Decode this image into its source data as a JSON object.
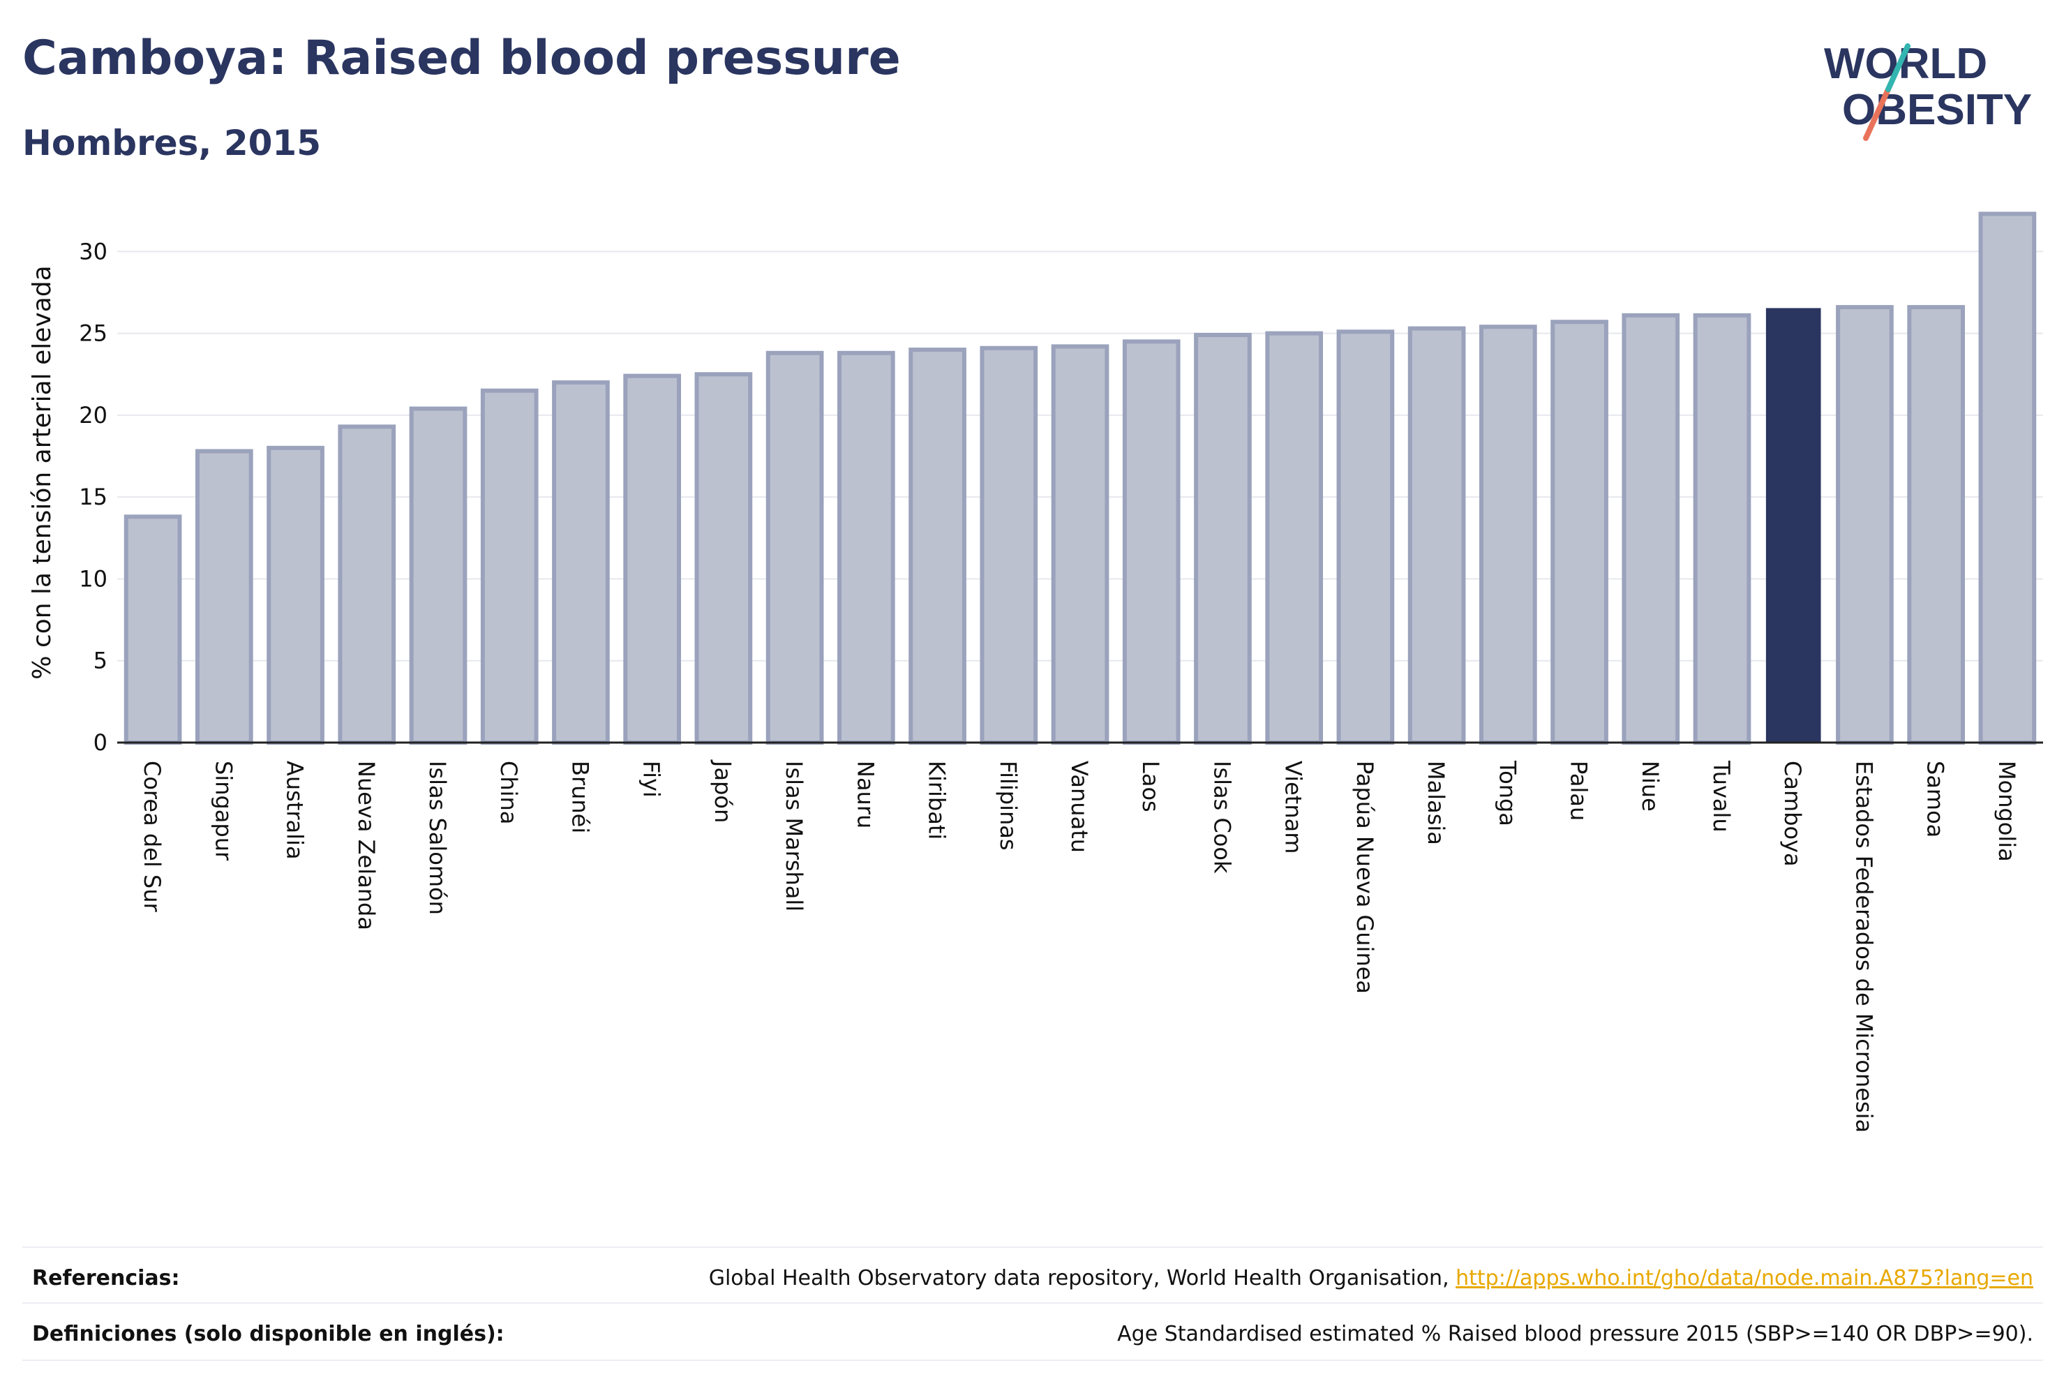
{
  "header": {
    "title": "Camboya: Raised blood pressure",
    "subtitle": "Hombres, 2015"
  },
  "logo": {
    "line1": "WORLD",
    "line2": "OBESITY"
  },
  "colors": {
    "highlight": "#2a3560",
    "bar": "#bcc1d0",
    "bar_border": "#9aa2bc",
    "text": "#2a3560"
  },
  "chart_data": {
    "type": "bar",
    "ylabel": "% con la tensión arterial elevada",
    "ylim": [
      0,
      33
    ],
    "yticks": [
      0,
      5,
      10,
      15,
      20,
      25,
      30
    ],
    "grid": true,
    "highlight": "Camboya",
    "categories": [
      "Corea del Sur",
      "Singapur",
      "Australia",
      "Nueva Zelanda",
      "Islas Salomón",
      "China",
      "Brunéi",
      "Fiyi",
      "Japón",
      "Islas Marshall",
      "Nauru",
      "Kiribati",
      "Filipinas",
      "Vanuatu",
      "Laos",
      "Islas Cook",
      "Vietnam",
      "Papúa Nueva Guinea",
      "Malasia",
      "Tonga",
      "Palau",
      "Niue",
      "Tuvalu",
      "Camboya",
      "Estados Federados de Micronesia",
      "Samoa",
      "Mongolia"
    ],
    "values": [
      13.8,
      17.8,
      18.0,
      19.3,
      20.4,
      21.5,
      22.0,
      22.4,
      22.5,
      23.8,
      23.8,
      24.0,
      24.1,
      24.2,
      24.5,
      24.9,
      25.0,
      25.1,
      25.3,
      25.4,
      25.7,
      26.1,
      26.1,
      26.5,
      26.6,
      26.6,
      32.3
    ]
  },
  "footer": {
    "references_label": "Referencias:",
    "references_text": "Global Health Observatory data repository, World Health Organisation, ",
    "references_link": "http://apps.who.int/gho/data/node.main.A875?lang=en",
    "definitions_label": "Definiciones (solo disponible en inglés):",
    "definitions_text": "Age Standardised estimated % Raised blood pressure 2015 (SBP>=140 OR DBP>=90)."
  }
}
